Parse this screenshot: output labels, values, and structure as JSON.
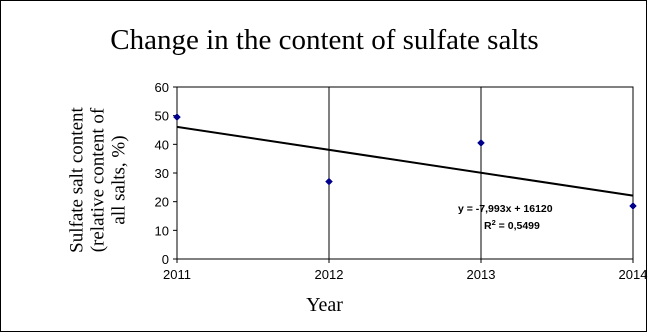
{
  "chart_data": {
    "type": "scatter",
    "title": "Change in the content of sulfate salts",
    "xlabel": "Year",
    "ylabel": [
      "Sulfate salt content",
      "(relative content of",
      "all salts, %)"
    ],
    "x_ticks": [
      "2011",
      "2012",
      "2013",
      "2014"
    ],
    "y_ticks": [
      "0",
      "10",
      "20",
      "30",
      "40",
      "50",
      "60"
    ],
    "xlim": [
      2011,
      2014
    ],
    "ylim": [
      0,
      60
    ],
    "grid": "vertical",
    "series": [
      {
        "x": [
          2011,
          2012,
          2013,
          2014
        ],
        "y": [
          49.5,
          27,
          40.5,
          18.5
        ],
        "color": "#00008b"
      }
    ],
    "trendline": {
      "slope": -7.993,
      "intercept": 16120,
      "r_squared": 0.5499,
      "color": "#000000"
    },
    "annotations": {
      "equation": "y = -7,993x + 16120",
      "r_squared_label": "R",
      "r_squared_exp": "2",
      "r_squared_value": " = 0,5499"
    }
  }
}
